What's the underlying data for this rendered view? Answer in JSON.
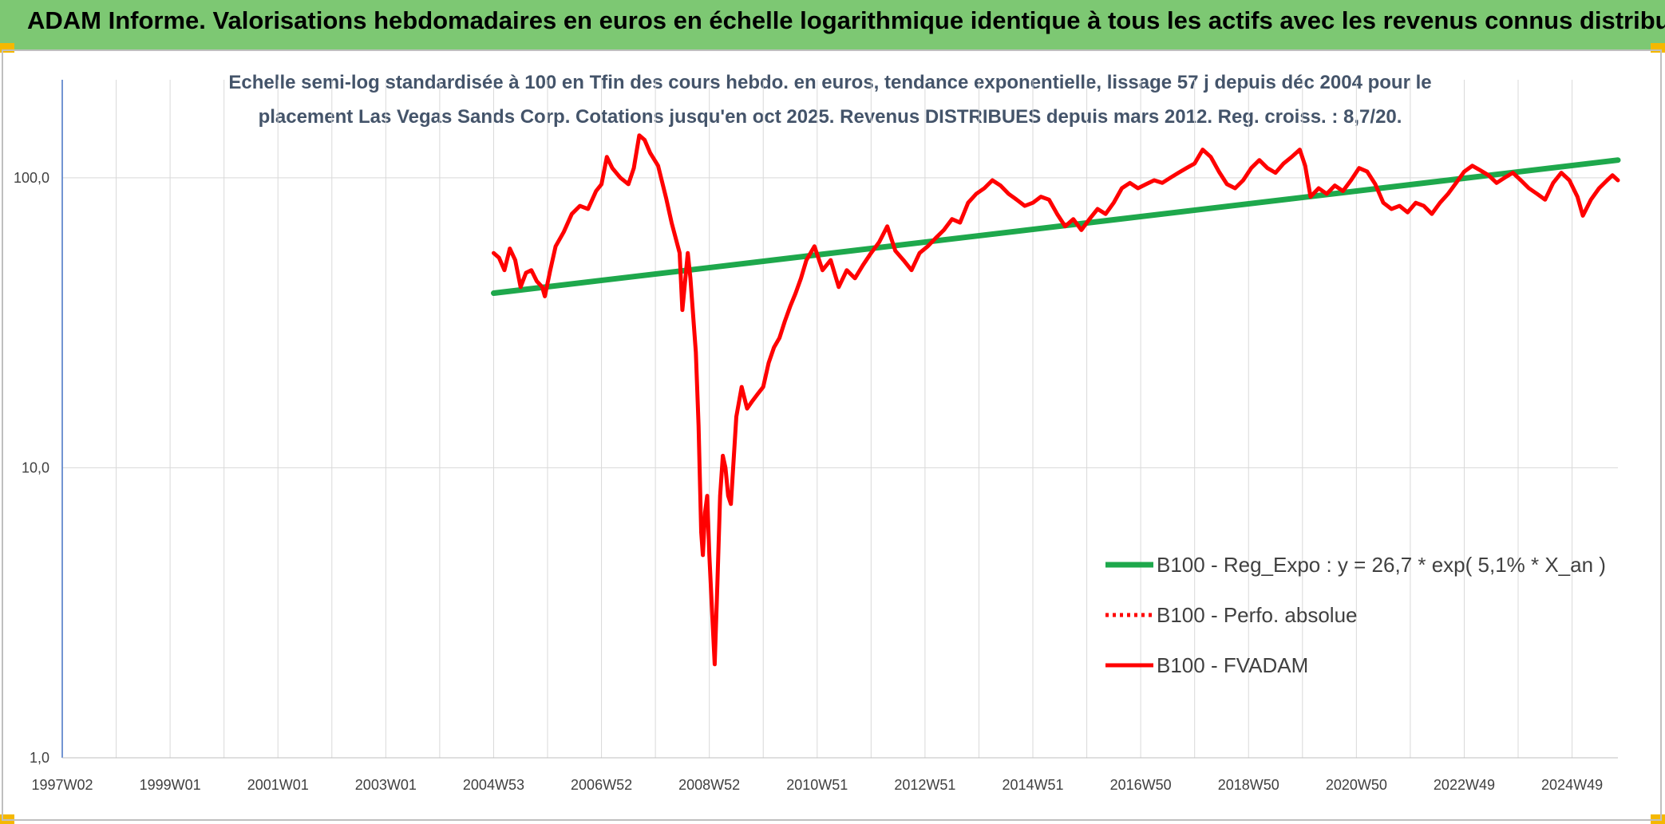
{
  "header": {
    "title": "ADAM Informe. Valorisations hebdomadaires en euros en échelle logarithmique identique à tous les actifs avec les revenus connus distribués"
  },
  "colors": {
    "banner": "#7dc873",
    "corner": "#f5b800",
    "fvadam": "#ff0000",
    "regression": "#1ea84c",
    "grid": "#d9d9d9"
  },
  "chart_data": {
    "type": "line",
    "title_line1": "Echelle semi-log standardisée à 100 en Tfin des cours hebdo. en euros, tendance exponentielle, lissage 57 j depuis déc 2004 pour le",
    "title_line2": "placement Las Vegas Sands Corp. Cotations jusqu'en oct 2025. Revenus DISTRIBUES depuis mars 2012. Reg. croiss. : 8,7/20.",
    "y_scale": "log",
    "ylim": [
      1,
      180
    ],
    "y_ticks": [
      {
        "value": 1,
        "label": "1,0"
      },
      {
        "value": 10,
        "label": "10,0"
      },
      {
        "value": 100,
        "label": "100,0"
      }
    ],
    "xlim": [
      1997.0,
      2025.85
    ],
    "x_ticks": [
      {
        "value": 1997.0,
        "label": "1997W02"
      },
      {
        "value": 1999.0,
        "label": "1999W01"
      },
      {
        "value": 2001.0,
        "label": "2001W01"
      },
      {
        "value": 2003.0,
        "label": "2003W01"
      },
      {
        "value": 2005.0,
        "label": "2004W53"
      },
      {
        "value": 2007.0,
        "label": "2006W52"
      },
      {
        "value": 2009.0,
        "label": "2008W52"
      },
      {
        "value": 2011.0,
        "label": "2010W51"
      },
      {
        "value": 2013.0,
        "label": "2012W51"
      },
      {
        "value": 2015.0,
        "label": "2014W51"
      },
      {
        "value": 2017.0,
        "label": "2016W50"
      },
      {
        "value": 2019.0,
        "label": "2018W50"
      },
      {
        "value": 2021.0,
        "label": "2020W50"
      },
      {
        "value": 2023.0,
        "label": "2022W49"
      },
      {
        "value": 2025.0,
        "label": "2024W49"
      }
    ],
    "grid": true,
    "legend_position": "bottom-right",
    "series": [
      {
        "name": "B100 - Reg_Expo : y = 26,7 * exp( 5,1% *  X_an )",
        "style": "solid",
        "points": [
          [
            2005.0,
            40
          ],
          [
            2025.85,
            115
          ]
        ]
      },
      {
        "name": "B100 - Perfo. absolue",
        "style": "dotted",
        "points": []
      },
      {
        "name": "B100 - FVADAM",
        "style": "solid",
        "points": [
          [
            2005.0,
            55
          ],
          [
            2005.1,
            53
          ],
          [
            2005.2,
            48
          ],
          [
            2005.3,
            57
          ],
          [
            2005.4,
            52
          ],
          [
            2005.5,
            42
          ],
          [
            2005.6,
            47
          ],
          [
            2005.7,
            48
          ],
          [
            2005.8,
            44
          ],
          [
            2005.9,
            42
          ],
          [
            2005.95,
            39
          ],
          [
            2006.05,
            48
          ],
          [
            2006.15,
            58
          ],
          [
            2006.3,
            65
          ],
          [
            2006.45,
            75
          ],
          [
            2006.6,
            80
          ],
          [
            2006.75,
            78
          ],
          [
            2006.9,
            90
          ],
          [
            2007.0,
            95
          ],
          [
            2007.1,
            118
          ],
          [
            2007.2,
            108
          ],
          [
            2007.35,
            100
          ],
          [
            2007.5,
            95
          ],
          [
            2007.6,
            108
          ],
          [
            2007.7,
            140
          ],
          [
            2007.8,
            135
          ],
          [
            2007.9,
            122
          ],
          [
            2008.05,
            110
          ],
          [
            2008.2,
            85
          ],
          [
            2008.3,
            70
          ],
          [
            2008.45,
            55
          ],
          [
            2008.5,
            35
          ],
          [
            2008.6,
            55
          ],
          [
            2008.65,
            45
          ],
          [
            2008.75,
            25
          ],
          [
            2008.8,
            14
          ],
          [
            2008.82,
            10
          ],
          [
            2008.85,
            6
          ],
          [
            2008.88,
            5
          ],
          [
            2008.92,
            7
          ],
          [
            2008.96,
            8
          ],
          [
            2009.0,
            5
          ],
          [
            2009.05,
            3.2
          ],
          [
            2009.1,
            2.1
          ],
          [
            2009.15,
            4
          ],
          [
            2009.2,
            8
          ],
          [
            2009.25,
            11
          ],
          [
            2009.3,
            10
          ],
          [
            2009.35,
            8
          ],
          [
            2009.4,
            7.5
          ],
          [
            2009.5,
            15
          ],
          [
            2009.6,
            19
          ],
          [
            2009.7,
            16
          ],
          [
            2009.8,
            17
          ],
          [
            2009.9,
            18
          ],
          [
            2010.0,
            19
          ],
          [
            2010.1,
            23
          ],
          [
            2010.2,
            26
          ],
          [
            2010.3,
            28
          ],
          [
            2010.4,
            32
          ],
          [
            2010.5,
            36
          ],
          [
            2010.6,
            40
          ],
          [
            2010.7,
            45
          ],
          [
            2010.8,
            52
          ],
          [
            2010.95,
            58
          ],
          [
            2011.1,
            48
          ],
          [
            2011.25,
            52
          ],
          [
            2011.4,
            42
          ],
          [
            2011.55,
            48
          ],
          [
            2011.7,
            45
          ],
          [
            2011.85,
            50
          ],
          [
            2012.0,
            55
          ],
          [
            2012.15,
            60
          ],
          [
            2012.3,
            68
          ],
          [
            2012.45,
            56
          ],
          [
            2012.6,
            52
          ],
          [
            2012.75,
            48
          ],
          [
            2012.9,
            55
          ],
          [
            2013.05,
            58
          ],
          [
            2013.2,
            62
          ],
          [
            2013.35,
            66
          ],
          [
            2013.5,
            72
          ],
          [
            2013.65,
            70
          ],
          [
            2013.8,
            82
          ],
          [
            2013.95,
            88
          ],
          [
            2014.1,
            92
          ],
          [
            2014.25,
            98
          ],
          [
            2014.4,
            94
          ],
          [
            2014.55,
            88
          ],
          [
            2014.7,
            84
          ],
          [
            2014.85,
            80
          ],
          [
            2015.0,
            82
          ],
          [
            2015.15,
            86
          ],
          [
            2015.3,
            84
          ],
          [
            2015.45,
            75
          ],
          [
            2015.6,
            68
          ],
          [
            2015.75,
            72
          ],
          [
            2015.9,
            66
          ],
          [
            2016.05,
            72
          ],
          [
            2016.2,
            78
          ],
          [
            2016.35,
            75
          ],
          [
            2016.5,
            82
          ],
          [
            2016.65,
            92
          ],
          [
            2016.8,
            96
          ],
          [
            2016.95,
            92
          ],
          [
            2017.1,
            95
          ],
          [
            2017.25,
            98
          ],
          [
            2017.4,
            96
          ],
          [
            2017.55,
            100
          ],
          [
            2017.7,
            104
          ],
          [
            2017.85,
            108
          ],
          [
            2018.0,
            112
          ],
          [
            2018.15,
            125
          ],
          [
            2018.3,
            118
          ],
          [
            2018.45,
            105
          ],
          [
            2018.6,
            95
          ],
          [
            2018.75,
            92
          ],
          [
            2018.9,
            98
          ],
          [
            2019.05,
            108
          ],
          [
            2019.2,
            115
          ],
          [
            2019.35,
            108
          ],
          [
            2019.5,
            104
          ],
          [
            2019.65,
            112
          ],
          [
            2019.8,
            118
          ],
          [
            2019.95,
            125
          ],
          [
            2020.05,
            110
          ],
          [
            2020.15,
            86
          ],
          [
            2020.3,
            92
          ],
          [
            2020.45,
            88
          ],
          [
            2020.6,
            94
          ],
          [
            2020.75,
            90
          ],
          [
            2020.9,
            98
          ],
          [
            2021.05,
            108
          ],
          [
            2021.2,
            105
          ],
          [
            2021.35,
            95
          ],
          [
            2021.5,
            82
          ],
          [
            2021.65,
            78
          ],
          [
            2021.8,
            80
          ],
          [
            2021.95,
            76
          ],
          [
            2022.1,
            82
          ],
          [
            2022.25,
            80
          ],
          [
            2022.4,
            75
          ],
          [
            2022.55,
            82
          ],
          [
            2022.7,
            88
          ],
          [
            2022.85,
            96
          ],
          [
            2023.0,
            105
          ],
          [
            2023.15,
            110
          ],
          [
            2023.3,
            106
          ],
          [
            2023.45,
            102
          ],
          [
            2023.6,
            96
          ],
          [
            2023.75,
            100
          ],
          [
            2023.9,
            104
          ],
          [
            2024.05,
            98
          ],
          [
            2024.2,
            92
          ],
          [
            2024.35,
            88
          ],
          [
            2024.5,
            84
          ],
          [
            2024.65,
            96
          ],
          [
            2024.8,
            104
          ],
          [
            2024.95,
            98
          ],
          [
            2025.1,
            86
          ],
          [
            2025.2,
            74
          ],
          [
            2025.35,
            84
          ],
          [
            2025.5,
            92
          ],
          [
            2025.65,
            98
          ],
          [
            2025.75,
            102
          ],
          [
            2025.85,
            98
          ]
        ]
      }
    ]
  }
}
